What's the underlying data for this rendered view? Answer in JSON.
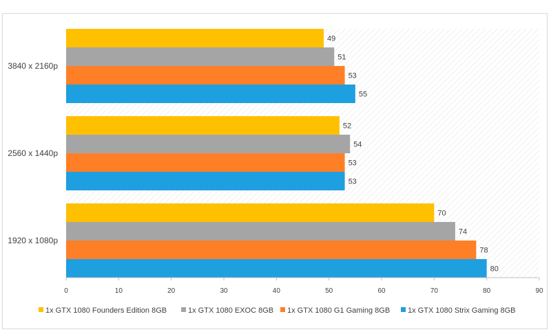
{
  "chart_data": {
    "type": "bar",
    "orientation": "horizontal",
    "title": "",
    "xlabel": "",
    "ylabel": "",
    "xlim": [
      0,
      90
    ],
    "x_ticks": [
      0,
      10,
      20,
      30,
      40,
      50,
      60,
      70,
      80,
      90
    ],
    "categories": [
      "3840 x 2160p",
      "2560 x 1440p",
      "1920 x 1080p"
    ],
    "series": [
      {
        "name": "1x GTX 1080 Founders Edition 8GB",
        "color": "#FFC000",
        "values": [
          49,
          52,
          70
        ]
      },
      {
        "name": "1x GTX 1080 EXOC 8GB",
        "color": "#A5A5A5",
        "values": [
          51,
          54,
          74
        ]
      },
      {
        "name": "1x GTX 1080 G1 Gaming 8GB",
        "color": "#FF7F27",
        "values": [
          53,
          53,
          78
        ]
      },
      {
        "name": "1x GTX 1080 Strix Gaming 8GB",
        "color": "#1E9FE0",
        "values": [
          55,
          53,
          80
        ]
      }
    ],
    "legend_position": "bottom",
    "plot_background": "hatched"
  }
}
